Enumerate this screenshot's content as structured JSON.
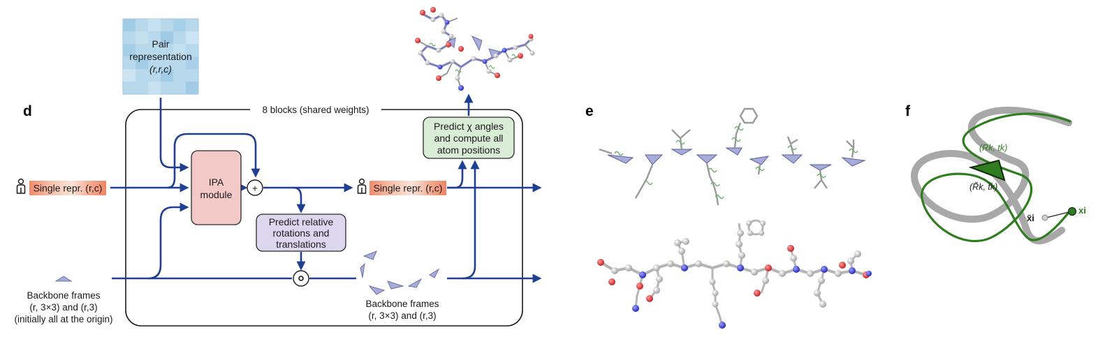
{
  "panels": {
    "d": "d",
    "e": "e",
    "f": "f"
  },
  "blocks_label": "8 blocks (shared weights)",
  "pair_rep": {
    "line1": "Pair",
    "line2": "representation",
    "line3": "(r,r,c)"
  },
  "single_repr_label": "Single repr. (r,c)",
  "ipa_module": {
    "line1": "IPA",
    "line2": "module"
  },
  "plus_symbol": "+",
  "compose_symbol": "∘",
  "predict_rel": {
    "line1": "Predict relative",
    "line2": "rotations and",
    "line3": "translations"
  },
  "predict_chi": {
    "line1": "Predict χ angles",
    "line2": "and compute all",
    "line3": "atom positions"
  },
  "backbone_in": {
    "line1": "Backbone frames",
    "line2": "(r, 3×3) and (r,3)",
    "line3": "(initially all at the origin)"
  },
  "backbone_out": {
    "line1": "Backbone frames",
    "line2": "(r, 3×3) and (r,3)"
  },
  "panel_f": {
    "frame_true": "(Rk, tk)",
    "frame_pred": "(R̃k, t̃k)",
    "x_pred": "x̃i",
    "x_true": "xi"
  },
  "colors": {
    "arrow": "#1f3f93",
    "ipa_fill": "#f2c9c6",
    "predict_rel_fill": "#ddd6ef",
    "predict_chi_fill": "#d9ecd6",
    "single_repr_fill": "#f2b59e",
    "pair_fill": "#a9cfe6",
    "frame_fill": "#a7acd8",
    "ribbon_green": "#2f7d1f",
    "ribbon_gray": "#a8a8a8"
  }
}
